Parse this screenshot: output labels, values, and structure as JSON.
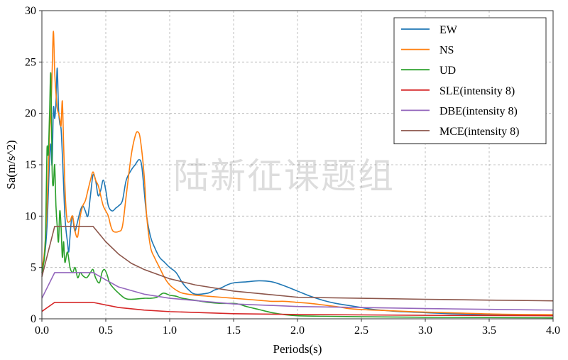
{
  "chart_data": {
    "type": "line",
    "title": "",
    "xlabel": "Periods(s)",
    "ylabel": "Sa(m/s^2)",
    "xlim": [
      0,
      4.0
    ],
    "ylim": [
      0,
      30
    ],
    "xticks": [
      0,
      0.5,
      1.0,
      1.5,
      2.0,
      2.5,
      3.0,
      3.5,
      4.0
    ],
    "xtick_labels": [
      "0.0",
      "0.5",
      "1.0",
      "1.5",
      "2.0",
      "2.5",
      "3.0",
      "3.5",
      "4.0"
    ],
    "yticks": [
      0,
      5,
      10,
      15,
      20,
      25,
      30
    ],
    "ytick_labels": [
      "0",
      "5",
      "10",
      "15",
      "20",
      "25",
      "30"
    ],
    "grid": true,
    "legend_position": "top-right",
    "watermark": "陆新征课题组",
    "series": [
      {
        "name": "EW",
        "color": "#1f77b4",
        "points": [
          [
            0,
            5.0
          ],
          [
            0.02,
            6.0
          ],
          [
            0.04,
            9.0
          ],
          [
            0.06,
            15.5
          ],
          [
            0.07,
            17.0
          ],
          [
            0.08,
            15.0
          ],
          [
            0.09,
            20.5
          ],
          [
            0.1,
            19.5
          ],
          [
            0.11,
            21.0
          ],
          [
            0.12,
            24.4
          ],
          [
            0.13,
            20.5
          ],
          [
            0.14,
            19.0
          ],
          [
            0.15,
            18.5
          ],
          [
            0.16,
            16.0
          ],
          [
            0.17,
            13.0
          ],
          [
            0.18,
            10.0
          ],
          [
            0.19,
            8.5
          ],
          [
            0.2,
            7.5
          ],
          [
            0.21,
            6.5
          ],
          [
            0.22,
            8.0
          ],
          [
            0.23,
            9.5
          ],
          [
            0.24,
            10.0
          ],
          [
            0.25,
            9.0
          ],
          [
            0.26,
            8.5
          ],
          [
            0.27,
            9.0
          ],
          [
            0.28,
            9.5
          ],
          [
            0.3,
            10.5
          ],
          [
            0.32,
            11.0
          ],
          [
            0.34,
            10.5
          ],
          [
            0.36,
            10.0
          ],
          [
            0.38,
            12.0
          ],
          [
            0.4,
            14.0
          ],
          [
            0.42,
            13.5
          ],
          [
            0.44,
            12.0
          ],
          [
            0.46,
            12.5
          ],
          [
            0.48,
            13.5
          ],
          [
            0.5,
            12.5
          ],
          [
            0.52,
            11.0
          ],
          [
            0.55,
            10.5
          ],
          [
            0.58,
            10.8
          ],
          [
            0.6,
            11.0
          ],
          [
            0.63,
            11.5
          ],
          [
            0.66,
            13.5
          ],
          [
            0.7,
            14.5
          ],
          [
            0.73,
            15.0
          ],
          [
            0.76,
            15.5
          ],
          [
            0.78,
            15.0
          ],
          [
            0.8,
            12.5
          ],
          [
            0.82,
            10.0
          ],
          [
            0.85,
            8.0
          ],
          [
            0.88,
            7.0
          ],
          [
            0.92,
            6.0
          ],
          [
            0.96,
            5.5
          ],
          [
            1.0,
            5.0
          ],
          [
            1.05,
            4.5
          ],
          [
            1.1,
            3.5
          ],
          [
            1.15,
            2.8
          ],
          [
            1.2,
            2.4
          ],
          [
            1.3,
            2.5
          ],
          [
            1.35,
            2.8
          ],
          [
            1.4,
            3.0
          ],
          [
            1.45,
            3.3
          ],
          [
            1.5,
            3.5
          ],
          [
            1.6,
            3.6
          ],
          [
            1.7,
            3.7
          ],
          [
            1.8,
            3.6
          ],
          [
            1.9,
            3.2
          ],
          [
            2.0,
            2.7
          ],
          [
            2.1,
            2.2
          ],
          [
            2.2,
            1.8
          ],
          [
            2.3,
            1.5
          ],
          [
            2.4,
            1.3
          ],
          [
            2.5,
            1.1
          ],
          [
            2.6,
            0.9
          ],
          [
            2.7,
            0.8
          ],
          [
            2.8,
            0.7
          ],
          [
            3.0,
            0.6
          ],
          [
            3.2,
            0.5
          ],
          [
            3.5,
            0.4
          ],
          [
            3.8,
            0.35
          ],
          [
            4.0,
            0.33
          ]
        ]
      },
      {
        "name": "NS",
        "color": "#ff7f0e",
        "points": [
          [
            0,
            5.0
          ],
          [
            0.02,
            6.5
          ],
          [
            0.04,
            11.0
          ],
          [
            0.06,
            18.0
          ],
          [
            0.07,
            20.0
          ],
          [
            0.08,
            24.0
          ],
          [
            0.09,
            28.0
          ],
          [
            0.1,
            24.0
          ],
          [
            0.11,
            22.0
          ],
          [
            0.12,
            20.5
          ],
          [
            0.13,
            20.0
          ],
          [
            0.14,
            19.5
          ],
          [
            0.15,
            18.8
          ],
          [
            0.16,
            21.2
          ],
          [
            0.17,
            17.0
          ],
          [
            0.18,
            13.0
          ],
          [
            0.19,
            10.5
          ],
          [
            0.2,
            9.5
          ],
          [
            0.22,
            9.5
          ],
          [
            0.24,
            10.0
          ],
          [
            0.26,
            8.5
          ],
          [
            0.28,
            8.0
          ],
          [
            0.3,
            10.0
          ],
          [
            0.32,
            11.0
          ],
          [
            0.34,
            11.5
          ],
          [
            0.36,
            12.5
          ],
          [
            0.38,
            13.5
          ],
          [
            0.4,
            14.3
          ],
          [
            0.42,
            13.5
          ],
          [
            0.44,
            13.0
          ],
          [
            0.46,
            12.0
          ],
          [
            0.48,
            11.0
          ],
          [
            0.5,
            10.5
          ],
          [
            0.52,
            10.0
          ],
          [
            0.54,
            9.0
          ],
          [
            0.56,
            8.5
          ],
          [
            0.6,
            8.5
          ],
          [
            0.63,
            9.0
          ],
          [
            0.66,
            12.0
          ],
          [
            0.7,
            16.0
          ],
          [
            0.73,
            17.8
          ],
          [
            0.75,
            18.2
          ],
          [
            0.77,
            17.5
          ],
          [
            0.8,
            14.0
          ],
          [
            0.82,
            10.0
          ],
          [
            0.85,
            7.0
          ],
          [
            0.88,
            6.0
          ],
          [
            0.92,
            5.0
          ],
          [
            0.96,
            4.0
          ],
          [
            1.0,
            3.3
          ],
          [
            1.05,
            2.8
          ],
          [
            1.1,
            2.5
          ],
          [
            1.2,
            2.3
          ],
          [
            1.3,
            2.2
          ],
          [
            1.4,
            2.1
          ],
          [
            1.5,
            2.0
          ],
          [
            1.6,
            1.9
          ],
          [
            1.7,
            1.8
          ],
          [
            1.8,
            1.7
          ],
          [
            1.9,
            1.7
          ],
          [
            2.0,
            1.6
          ],
          [
            2.1,
            1.5
          ],
          [
            2.2,
            1.35
          ],
          [
            2.3,
            1.2
          ],
          [
            2.4,
            1.0
          ],
          [
            2.5,
            0.9
          ],
          [
            2.7,
            0.8
          ],
          [
            3.0,
            0.65
          ],
          [
            3.3,
            0.55
          ],
          [
            3.6,
            0.45
          ],
          [
            4.0,
            0.4
          ]
        ]
      },
      {
        "name": "UD",
        "color": "#2ca02c",
        "points": [
          [
            0,
            4.5
          ],
          [
            0.02,
            6.0
          ],
          [
            0.03,
            9.0
          ],
          [
            0.04,
            16.5
          ],
          [
            0.05,
            16.0
          ],
          [
            0.06,
            20.0
          ],
          [
            0.07,
            23.8
          ],
          [
            0.08,
            14.5
          ],
          [
            0.09,
            13.0
          ],
          [
            0.1,
            15.0
          ],
          [
            0.11,
            11.0
          ],
          [
            0.12,
            9.0
          ],
          [
            0.13,
            7.5
          ],
          [
            0.14,
            10.5
          ],
          [
            0.15,
            9.0
          ],
          [
            0.16,
            6.0
          ],
          [
            0.17,
            7.5
          ],
          [
            0.18,
            5.5
          ],
          [
            0.2,
            6.5
          ],
          [
            0.22,
            5.0
          ],
          [
            0.24,
            4.5
          ],
          [
            0.26,
            5.0
          ],
          [
            0.28,
            4.0
          ],
          [
            0.3,
            4.5
          ],
          [
            0.32,
            4.2
          ],
          [
            0.35,
            4.0
          ],
          [
            0.38,
            4.5
          ],
          [
            0.4,
            4.8
          ],
          [
            0.42,
            4.0
          ],
          [
            0.45,
            3.5
          ],
          [
            0.47,
            4.5
          ],
          [
            0.49,
            4.8
          ],
          [
            0.51,
            4.3
          ],
          [
            0.53,
            3.5
          ],
          [
            0.56,
            3.0
          ],
          [
            0.6,
            2.5
          ],
          [
            0.65,
            2.0
          ],
          [
            0.7,
            1.9
          ],
          [
            0.8,
            2.0
          ],
          [
            0.85,
            2.0
          ],
          [
            0.9,
            2.1
          ],
          [
            0.95,
            2.5
          ],
          [
            1.0,
            2.3
          ],
          [
            1.05,
            2.2
          ],
          [
            1.1,
            2.0
          ],
          [
            1.2,
            1.8
          ],
          [
            1.3,
            1.6
          ],
          [
            1.4,
            1.5
          ],
          [
            1.5,
            1.5
          ],
          [
            1.55,
            1.4
          ],
          [
            1.6,
            1.2
          ],
          [
            1.7,
            0.9
          ],
          [
            1.8,
            0.6
          ],
          [
            1.9,
            0.4
          ],
          [
            2.0,
            0.3
          ],
          [
            2.2,
            0.25
          ],
          [
            2.5,
            0.2
          ],
          [
            3.0,
            0.15
          ],
          [
            3.5,
            0.12
          ],
          [
            4.0,
            0.1
          ]
        ]
      },
      {
        "name": "SLE(intensity 8)",
        "color": "#d62728",
        "points": [
          [
            0,
            0.72
          ],
          [
            0.1,
            1.6
          ],
          [
            0.4,
            1.6
          ],
          [
            0.6,
            1.1
          ],
          [
            0.8,
            0.85
          ],
          [
            1.0,
            0.7
          ],
          [
            1.5,
            0.5
          ],
          [
            2.0,
            0.42
          ],
          [
            2.5,
            0.38
          ],
          [
            3.0,
            0.34
          ],
          [
            3.5,
            0.32
          ],
          [
            4.0,
            0.3
          ]
        ]
      },
      {
        "name": "DBE(intensity 8)",
        "color": "#9467bd",
        "points": [
          [
            0,
            2.0
          ],
          [
            0.1,
            4.5
          ],
          [
            0.4,
            4.5
          ],
          [
            0.6,
            3.1
          ],
          [
            0.8,
            2.4
          ],
          [
            1.0,
            2.0
          ],
          [
            1.5,
            1.45
          ],
          [
            2.0,
            1.2
          ],
          [
            2.5,
            1.1
          ],
          [
            3.0,
            1.0
          ],
          [
            3.5,
            0.92
          ],
          [
            4.0,
            0.85
          ]
        ]
      },
      {
        "name": "MCE(intensity 8)",
        "color": "#8c564b",
        "points": [
          [
            0,
            4.1
          ],
          [
            0.1,
            9.0
          ],
          [
            0.4,
            9.0
          ],
          [
            0.5,
            7.5
          ],
          [
            0.6,
            6.3
          ],
          [
            0.7,
            5.4
          ],
          [
            0.8,
            4.8
          ],
          [
            1.0,
            3.9
          ],
          [
            1.2,
            3.3
          ],
          [
            1.5,
            2.7
          ],
          [
            2.0,
            2.1
          ],
          [
            2.5,
            2.0
          ],
          [
            3.0,
            1.9
          ],
          [
            3.5,
            1.82
          ],
          [
            4.0,
            1.75
          ]
        ]
      }
    ]
  }
}
